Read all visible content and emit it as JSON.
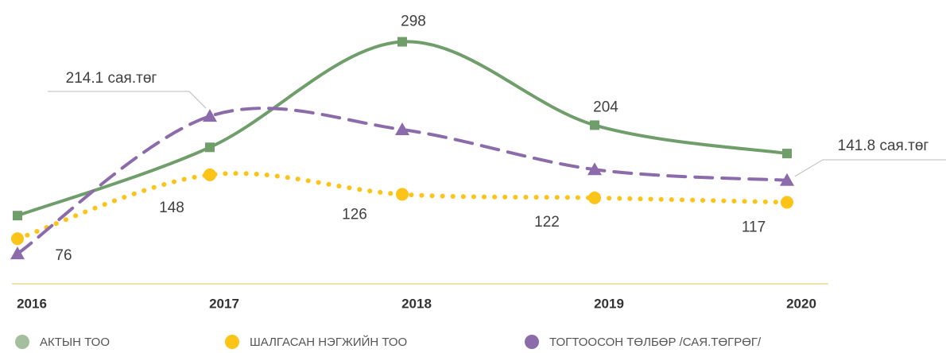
{
  "chart_data": {
    "type": "line",
    "categories": [
      "2016",
      "2017",
      "2018",
      "2019",
      "2020"
    ],
    "ylim": [
      0,
      320
    ],
    "series": [
      {
        "name": "АКТЫН ТОО",
        "color": "#6f9e6a",
        "legend_color": "#a3bf9e",
        "marker": "square",
        "dash": "solid",
        "values": [
          102,
          179,
          298,
          204,
          172
        ],
        "value_labels": [
          null,
          null,
          "298",
          "204",
          null
        ]
      },
      {
        "name": "ШАЛГАСАН НЭГЖИЙН ТОО",
        "color": "#fcc419",
        "marker": "circle",
        "dash": "dotted",
        "values": [
          76,
          148,
          126,
          122,
          117
        ]
      },
      {
        "name": "ТОГТООСОН ТӨЛБӨР /САЯ.ТӨГРӨГ/",
        "color": "#8c6bab",
        "marker": "triangle",
        "dash": "dashed",
        "values": [
          59,
          214.1,
          199,
          154,
          141.8
        ],
        "value_labels": [
          null,
          "214.1 сая.төг",
          null,
          null,
          "141.8 сая.төг"
        ]
      }
    ]
  }
}
